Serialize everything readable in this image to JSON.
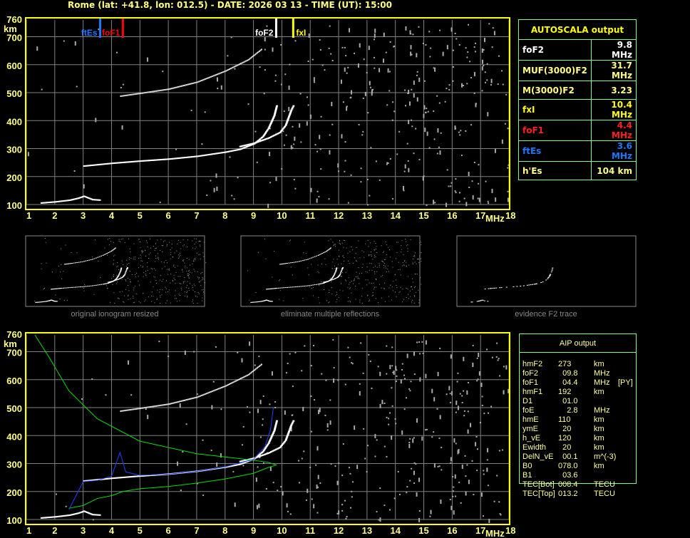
{
  "title": "Rome (lat: +41.8, lon: 012.5) - DATE: 2026 03 13 - TIME (UT): 15:00",
  "colors": {
    "axis": "#ffff00",
    "grid": "#808080",
    "table_border": "#80ff80",
    "foF2": "#ffffff",
    "fxI": "#ffff00",
    "foF1": "#ff0000",
    "ftEs": "#1e78ff",
    "aip_profile": "#00e000",
    "aip_trace": "#2040ff"
  },
  "autoscala": {
    "header": "AUTOSCALA output",
    "rows": [
      {
        "label": "foF2",
        "value": "9.8 MHz",
        "color": "#ffffff"
      },
      {
        "label": "MUF(3000)F2",
        "value": "31.7 MHz",
        "color": "#ffff80"
      },
      {
        "label": "M(3000)F2",
        "value": "3.23",
        "color": "#ffff80"
      },
      {
        "label": "fxI",
        "value": "10.4 MHz",
        "color": "#ffff00"
      },
      {
        "label": "foF1",
        "value": "4.4 MHz",
        "color": "#ff2020"
      },
      {
        "label": "ftEs",
        "value": "3.6 MHz",
        "color": "#1e78ff"
      },
      {
        "label": "h'Es",
        "value": "104     km",
        "color": "#ffff80"
      }
    ]
  },
  "aip": {
    "header": "AIP output",
    "rows": [
      {
        "label": "hmF2",
        "value": "273",
        "unit": "km",
        "extra": ""
      },
      {
        "label": "foF2",
        "value": "  09.8",
        "unit": "MHz",
        "extra": ""
      },
      {
        "label": "foF1",
        "value": "  04.4",
        "unit": "MHz",
        "extra": "[PY]"
      },
      {
        "label": "hmF1",
        "value": "192",
        "unit": "km",
        "extra": ""
      },
      {
        "label": "D1",
        "value": "  01.0",
        "unit": "",
        "extra": ""
      },
      {
        "label": "foE",
        "value": "    2.8",
        "unit": "MHz",
        "extra": ""
      },
      {
        "label": "hmE",
        "value": "110",
        "unit": "km",
        "extra": ""
      },
      {
        "label": "ymE",
        "value": "  20",
        "unit": "km",
        "extra": ""
      },
      {
        "label": "h_vE",
        "value": "120",
        "unit": "km",
        "extra": ""
      },
      {
        "label": "Ewidth",
        "value": "  20",
        "unit": "km",
        "extra": ""
      },
      {
        "label": "DelN_vE",
        "value": "  00.1",
        "unit": "m^(-3)",
        "extra": ""
      },
      {
        "label": "B0",
        "value": "078.0",
        "unit": "km",
        "extra": ""
      },
      {
        "label": "B1",
        "value": "  03.6",
        "unit": "",
        "extra": ""
      },
      {
        "label": "TEC[Bot]",
        "value": "008.4",
        "unit": "TECU",
        "extra": ""
      },
      {
        "label": "TEC[Top]",
        "value": "013.2",
        "unit": "TECU",
        "extra": ""
      }
    ]
  },
  "thumbnails": [
    {
      "caption": "original ionogram resized"
    },
    {
      "caption": "eliminate multiple reflections"
    },
    {
      "caption": "evidence F2 trace"
    }
  ],
  "chart_data": [
    {
      "type": "scatter",
      "panel": "autoscala-ionogram",
      "ylabel": "km",
      "xunit": "MHz",
      "xlim": [
        1,
        18
      ],
      "ylim": [
        100,
        760
      ],
      "xticks": [
        "1",
        "2",
        "3",
        "4",
        "5",
        "6",
        "7",
        "8",
        "9",
        "10",
        "11",
        "12",
        "13",
        "14",
        "15",
        "16",
        "17",
        "18"
      ],
      "yticks": [
        "100",
        "200",
        "300",
        "400",
        "500",
        "600",
        "700",
        "760"
      ],
      "grid": true,
      "markers": [
        {
          "label": "ftEs",
          "freq": 3.6,
          "color": "#1e78ff"
        },
        {
          "label": "foF1",
          "freq": 4.4,
          "color": "#ff0000"
        },
        {
          "label": "foF2",
          "freq": 9.8,
          "color": "#ffffff"
        },
        {
          "label": "fxI",
          "freq": 10.4,
          "color": "#ffff00"
        }
      ],
      "traces": [
        {
          "kind": "Es",
          "points": [
            [
              1.5,
              108
            ],
            [
              2.0,
              112
            ],
            [
              2.5,
              118
            ],
            [
              2.8,
              125
            ],
            [
              3.0,
              132
            ],
            [
              3.3,
              120
            ],
            [
              3.6,
              118
            ]
          ]
        },
        {
          "kind": "F-ordinary",
          "points": [
            [
              3.0,
              240
            ],
            [
              3.5,
              245
            ],
            [
              4,
              250
            ],
            [
              5,
              258
            ],
            [
              6,
              265
            ],
            [
              7,
              275
            ],
            [
              8,
              290
            ],
            [
              8.5,
              300
            ],
            [
              9,
              320
            ],
            [
              9.3,
              345
            ],
            [
              9.5,
              375
            ],
            [
              9.7,
              420
            ],
            [
              9.8,
              460
            ]
          ]
        },
        {
          "kind": "F-extraordinary",
          "points": [
            [
              8.5,
              310
            ],
            [
              9,
              322
            ],
            [
              9.5,
              340
            ],
            [
              9.9,
              360
            ],
            [
              10.1,
              385
            ],
            [
              10.3,
              440
            ],
            [
              10.4,
              460
            ]
          ]
        },
        {
          "kind": "multiple-reflection",
          "points": [
            [
              4.3,
              490
            ],
            [
              5,
              500
            ],
            [
              6,
              515
            ],
            [
              7,
              540
            ],
            [
              8,
              580
            ],
            [
              8.8,
              620
            ],
            [
              9.3,
              660
            ]
          ]
        }
      ]
    },
    {
      "type": "scatter",
      "panel": "aip-ionogram",
      "ylabel": "km",
      "xunit": "MHz",
      "xlim": [
        1,
        18
      ],
      "ylim": [
        100,
        760
      ],
      "xticks": [
        "1",
        "2",
        "3",
        "4",
        "5",
        "6",
        "7",
        "8",
        "9",
        "10",
        "11",
        "12",
        "13",
        "14",
        "15",
        "16",
        "17",
        "18"
      ],
      "yticks": [
        "100",
        "200",
        "300",
        "400",
        "500",
        "600",
        "700",
        "760"
      ],
      "grid": true,
      "traces": [
        {
          "kind": "Es",
          "points": [
            [
              1.5,
              108
            ],
            [
              2.0,
              112
            ],
            [
              2.5,
              118
            ],
            [
              2.8,
              125
            ],
            [
              3.0,
              132
            ],
            [
              3.3,
              120
            ],
            [
              3.6,
              118
            ]
          ]
        },
        {
          "kind": "F-ordinary",
          "points": [
            [
              3.0,
              240
            ],
            [
              3.5,
              245
            ],
            [
              4,
              250
            ],
            [
              5,
              258
            ],
            [
              6,
              265
            ],
            [
              7,
              275
            ],
            [
              8,
              290
            ],
            [
              8.5,
              300
            ],
            [
              9,
              320
            ],
            [
              9.3,
              345
            ],
            [
              9.5,
              375
            ],
            [
              9.7,
              420
            ],
            [
              9.8,
              460
            ]
          ]
        },
        {
          "kind": "F-extraordinary",
          "points": [
            [
              8.5,
              310
            ],
            [
              9,
              322
            ],
            [
              9.5,
              340
            ],
            [
              9.9,
              360
            ],
            [
              10.1,
              385
            ],
            [
              10.3,
              440
            ],
            [
              10.4,
              460
            ]
          ]
        },
        {
          "kind": "multiple-reflection",
          "points": [
            [
              4.3,
              490
            ],
            [
              5,
              500
            ],
            [
              6,
              515
            ],
            [
              7,
              540
            ],
            [
              8,
              580
            ],
            [
              8.8,
              620
            ],
            [
              9.3,
              660
            ]
          ]
        }
      ],
      "model_curves": [
        {
          "kind": "real-height-profile",
          "color": "#00e000",
          "points": [
            [
              2.5,
              140
            ],
            [
              3,
              150
            ],
            [
              3.5,
              175
            ],
            [
              4,
              185
            ],
            [
              4.4,
              200
            ],
            [
              5,
              210
            ],
            [
              6,
              218
            ],
            [
              7,
              230
            ],
            [
              8,
              245
            ],
            [
              9,
              265
            ],
            [
              9.5,
              285
            ],
            [
              9.8,
              295
            ],
            [
              9.5,
              305
            ],
            [
              8.5,
              318
            ],
            [
              7,
              335
            ],
            [
              5,
              380
            ],
            [
              3.5,
              460
            ],
            [
              2.5,
              560
            ],
            [
              1.8,
              680
            ],
            [
              1.3,
              760
            ]
          ]
        },
        {
          "kind": "virtual-height-fit",
          "color": "#2040ff",
          "points": [
            [
              2.5,
              135
            ],
            [
              3,
              235
            ],
            [
              3.5,
              240
            ],
            [
              4,
              255
            ],
            [
              4.3,
              340
            ],
            [
              4.5,
              270
            ],
            [
              5,
              258
            ],
            [
              6,
              262
            ],
            [
              7,
              272
            ],
            [
              8,
              288
            ],
            [
              9,
              315
            ],
            [
              9.4,
              360
            ],
            [
              9.6,
              420
            ],
            [
              9.7,
              500
            ]
          ]
        }
      ]
    }
  ]
}
